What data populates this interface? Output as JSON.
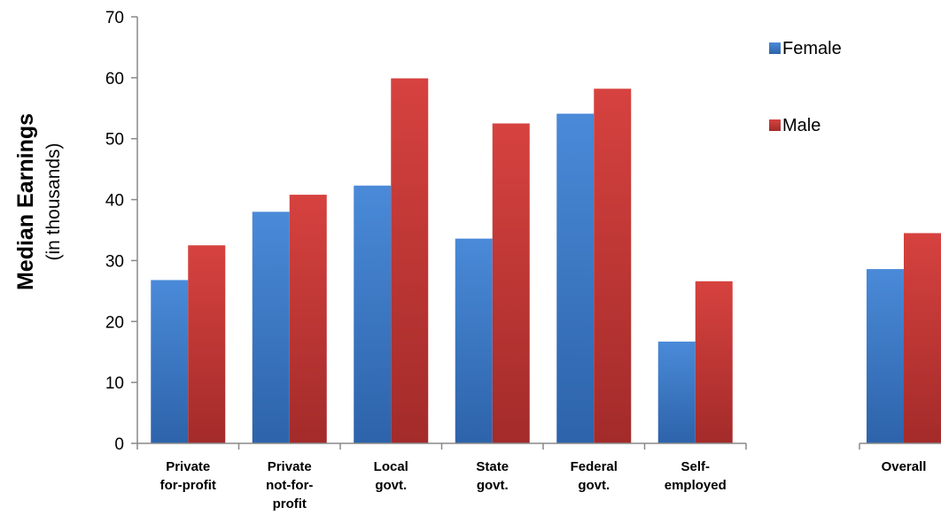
{
  "chart_data": {
    "type": "bar",
    "ylabel": "Median Earnings",
    "ylabel_sub": "(in thousands)",
    "ylim": [
      0,
      70
    ],
    "yticks": [
      "0",
      "10",
      "20",
      "30",
      "40",
      "50",
      "60",
      "70"
    ],
    "groups": [
      {
        "categories": [
          [
            "Private",
            "for-profit"
          ],
          [
            "Private",
            "not-for-",
            "profit"
          ],
          [
            "Local",
            "govt."
          ],
          [
            "State",
            "govt."
          ],
          [
            "Federal",
            "govt."
          ],
          [
            "Self-",
            "employed"
          ]
        ]
      },
      {
        "categories": [
          [
            "Overall"
          ]
        ]
      }
    ],
    "series": [
      {
        "name": "Female",
        "color": "#3f7fcf",
        "values": [
          26.8,
          38.0,
          42.3,
          33.6,
          54.1,
          16.7,
          28.6
        ]
      },
      {
        "name": "Male",
        "color": "#c93a38",
        "values": [
          32.5,
          40.8,
          59.9,
          52.5,
          58.2,
          26.6,
          34.5
        ]
      }
    ],
    "legend_position": "top-right",
    "grid": false
  }
}
